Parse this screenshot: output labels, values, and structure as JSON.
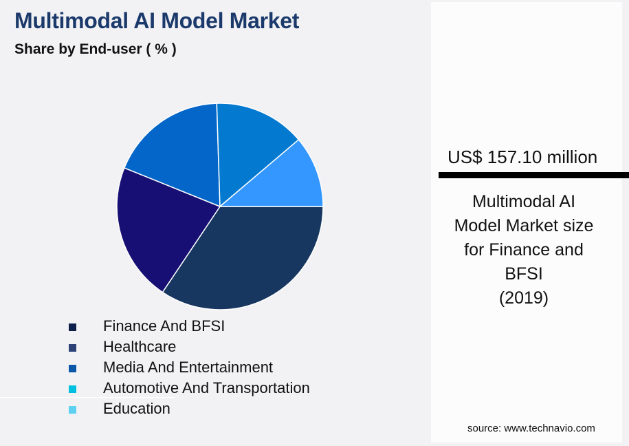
{
  "header": {
    "title": "Multimodal AI Model Market",
    "subtitle": "Share by End-user ( % )"
  },
  "legend": {
    "items": [
      {
        "label": "Finance And BFSI",
        "color": "#0d1f4a"
      },
      {
        "label": "Healthcare",
        "color": "#2c4277"
      },
      {
        "label": "Media And Entertainment",
        "color": "#0b57a8"
      },
      {
        "label": "Automotive And Transportation",
        "color": "#00c0e0"
      },
      {
        "label": "Education",
        "color": "#5ed0f0"
      }
    ]
  },
  "kpi": {
    "value": "US$ 157.10 million",
    "description_lines": [
      "Multimodal AI",
      "Model Market size",
      "for Finance and",
      "BFSI",
      "(2019)"
    ]
  },
  "footer": {
    "source": "source: www.technavio.com"
  },
  "chart_data": {
    "type": "pie",
    "title": "Multimodal AI Model Market",
    "subtitle": "Share by End-user ( % )",
    "categories": [
      "Finance And BFSI",
      "Healthcare",
      "Media And Entertainment",
      "Automotive And Transportation",
      "Education"
    ],
    "values": [
      34.4,
      21.7,
      18.4,
      14.3,
      11.2
    ],
    "slice_colors": [
      "#173761",
      "#170f73",
      "#0466c8",
      "#0379d0",
      "#3397ff"
    ],
    "start_angle_deg": 0,
    "direction": "clockwise",
    "legend_position": "bottom"
  }
}
